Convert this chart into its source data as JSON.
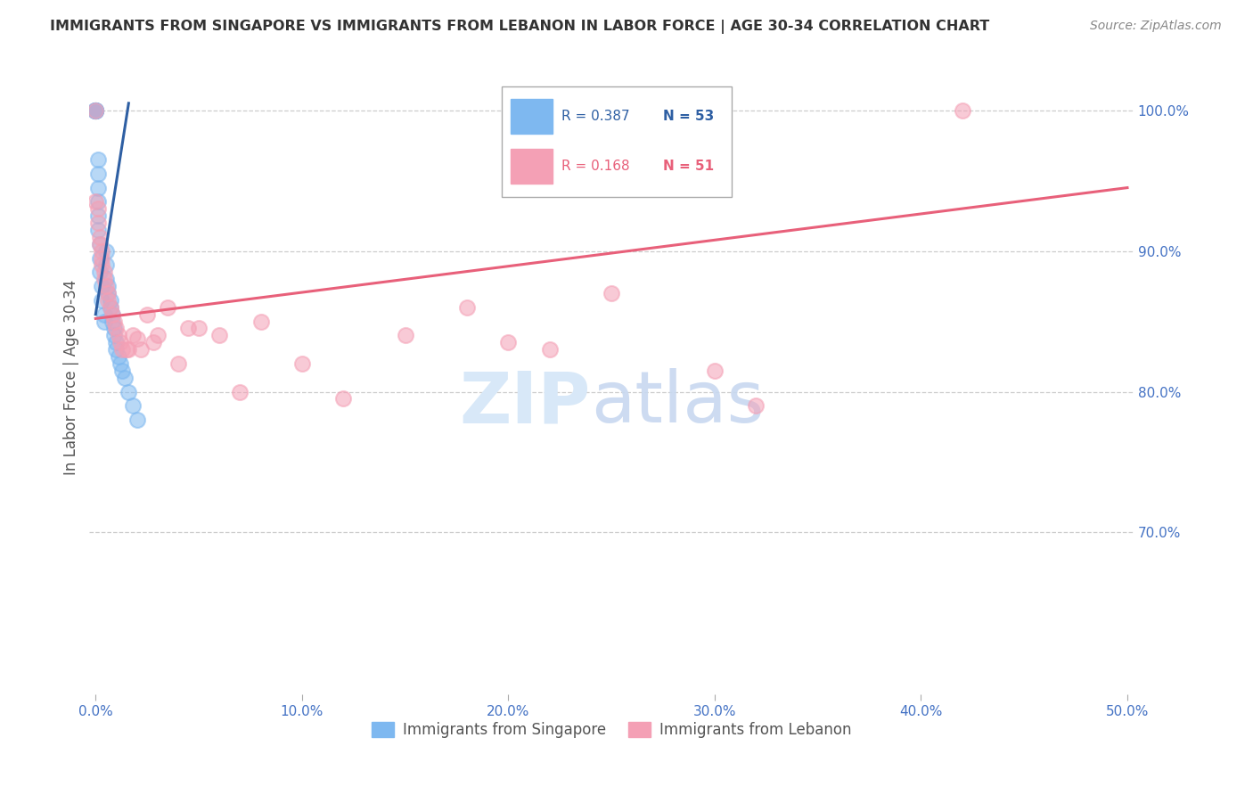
{
  "title": "IMMIGRANTS FROM SINGAPORE VS IMMIGRANTS FROM LEBANON IN LABOR FORCE | AGE 30-34 CORRELATION CHART",
  "source": "Source: ZipAtlas.com",
  "ylabel": "In Labor Force | Age 30-34",
  "xlim": [
    -0.003,
    0.503
  ],
  "ylim": [
    0.585,
    1.035
  ],
  "yticks_right": [
    0.7,
    0.8,
    0.9,
    1.0
  ],
  "ytick_labels_right": [
    "70.0%",
    "80.0%",
    "90.0%",
    "100.0%"
  ],
  "xticks": [
    0.0,
    0.1,
    0.2,
    0.3,
    0.4,
    0.5
  ],
  "xtick_labels": [
    "0.0%",
    "10.0%",
    "20.0%",
    "30.0%",
    "40.0%",
    "50.0%"
  ],
  "legend_r_singapore": "R = 0.387",
  "legend_n_singapore": "N = 53",
  "legend_r_lebanon": "R = 0.168",
  "legend_n_lebanon": "N = 51",
  "legend_label_singapore": "Immigrants from Singapore",
  "legend_label_lebanon": "Immigrants from Lebanon",
  "color_singapore": "#7EB8F0",
  "color_lebanon": "#F4A0B5",
  "color_singapore_line": "#2E5FA3",
  "color_lebanon_line": "#E8607A",
  "color_title": "#333333",
  "color_axis_label": "#555555",
  "color_tick_label_blue": "#4472C4",
  "color_source": "#888888",
  "color_watermark": "#D8E8F8",
  "watermark_zip": "ZIP",
  "watermark_atlas": "atlas",
  "grid_color": "#CCCCCC",
  "sg_line_x0": 0.0,
  "sg_line_x1": 0.016,
  "sg_line_y0": 0.855,
  "sg_line_y1": 1.005,
  "lb_line_x0": 0.0,
  "lb_line_x1": 0.5,
  "lb_line_y0": 0.852,
  "lb_line_y1": 0.945,
  "singapore_x": [
    0.0,
    0.0,
    0.0,
    0.0,
    0.0,
    0.0,
    0.0,
    0.0,
    0.0,
    0.0,
    0.001,
    0.001,
    0.001,
    0.001,
    0.001,
    0.001,
    0.002,
    0.002,
    0.002,
    0.003,
    0.003,
    0.004,
    0.004,
    0.005,
    0.005,
    0.005,
    0.006,
    0.006,
    0.007,
    0.007,
    0.008,
    0.008,
    0.009,
    0.009,
    0.01,
    0.01,
    0.011,
    0.012,
    0.013,
    0.014,
    0.016,
    0.018,
    0.02
  ],
  "singapore_y": [
    1.0,
    1.0,
    1.0,
    1.0,
    1.0,
    1.0,
    1.0,
    1.0,
    1.0,
    1.0,
    0.965,
    0.955,
    0.945,
    0.935,
    0.925,
    0.915,
    0.905,
    0.895,
    0.885,
    0.875,
    0.865,
    0.855,
    0.85,
    0.9,
    0.89,
    0.88,
    0.875,
    0.87,
    0.865,
    0.86,
    0.855,
    0.85,
    0.845,
    0.84,
    0.835,
    0.83,
    0.825,
    0.82,
    0.815,
    0.81,
    0.8,
    0.79,
    0.78
  ],
  "lebanon_x": [
    0.0,
    0.0,
    0.001,
    0.001,
    0.002,
    0.002,
    0.003,
    0.003,
    0.003,
    0.004,
    0.004,
    0.005,
    0.006,
    0.006,
    0.007,
    0.008,
    0.009,
    0.01,
    0.011,
    0.012,
    0.013,
    0.015,
    0.016,
    0.018,
    0.02,
    0.022,
    0.025,
    0.028,
    0.03,
    0.035,
    0.04,
    0.045,
    0.05,
    0.06,
    0.07,
    0.08,
    0.1,
    0.12,
    0.15,
    0.18,
    0.2,
    0.22,
    0.25,
    0.3,
    0.32,
    0.42
  ],
  "lebanon_y": [
    1.0,
    0.935,
    0.93,
    0.92,
    0.91,
    0.905,
    0.9,
    0.895,
    0.89,
    0.885,
    0.88,
    0.875,
    0.87,
    0.865,
    0.86,
    0.855,
    0.85,
    0.845,
    0.84,
    0.835,
    0.83,
    0.83,
    0.83,
    0.84,
    0.838,
    0.83,
    0.855,
    0.835,
    0.84,
    0.86,
    0.82,
    0.845,
    0.845,
    0.84,
    0.8,
    0.85,
    0.82,
    0.795,
    0.84,
    0.86,
    0.835,
    0.83,
    0.87,
    0.815,
    0.79,
    1.0
  ]
}
